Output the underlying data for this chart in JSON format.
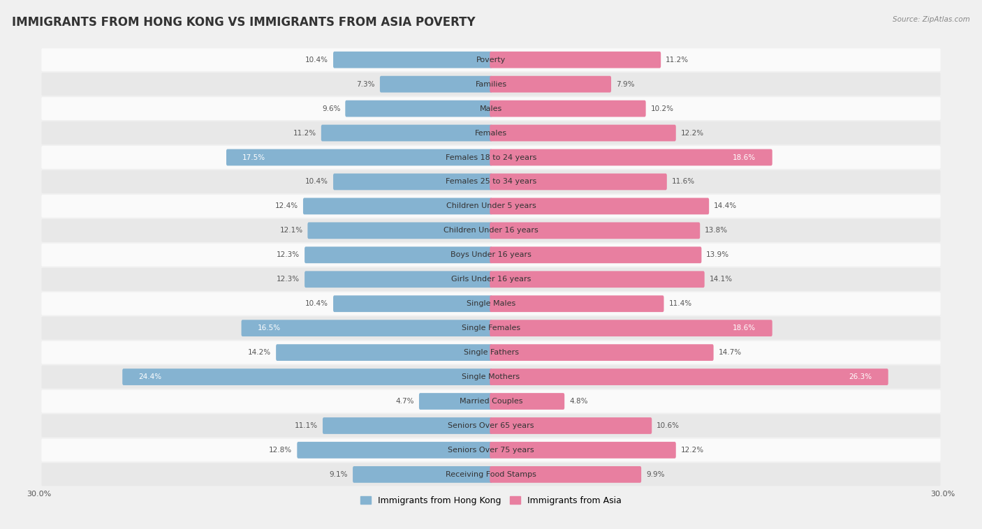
{
  "title": "IMMIGRANTS FROM HONG KONG VS IMMIGRANTS FROM ASIA POVERTY",
  "source": "Source: ZipAtlas.com",
  "categories": [
    "Poverty",
    "Families",
    "Males",
    "Females",
    "Females 18 to 24 years",
    "Females 25 to 34 years",
    "Children Under 5 years",
    "Children Under 16 years",
    "Boys Under 16 years",
    "Girls Under 16 years",
    "Single Males",
    "Single Females",
    "Single Fathers",
    "Single Mothers",
    "Married Couples",
    "Seniors Over 65 years",
    "Seniors Over 75 years",
    "Receiving Food Stamps"
  ],
  "hong_kong_values": [
    10.4,
    7.3,
    9.6,
    11.2,
    17.5,
    10.4,
    12.4,
    12.1,
    12.3,
    12.3,
    10.4,
    16.5,
    14.2,
    24.4,
    4.7,
    11.1,
    12.8,
    9.1
  ],
  "asia_values": [
    11.2,
    7.9,
    10.2,
    12.2,
    18.6,
    11.6,
    14.4,
    13.8,
    13.9,
    14.1,
    11.4,
    18.6,
    14.7,
    26.3,
    4.8,
    10.6,
    12.2,
    9.9
  ],
  "hk_color": "#85b3d1",
  "asia_color": "#e87fa0",
  "hk_label": "Immigrants from Hong Kong",
  "asia_label": "Immigrants from Asia",
  "xlim": 30.0,
  "bar_height": 0.52,
  "bg_color": "#f0f0f0",
  "row_light_color": "#fafafa",
  "row_dark_color": "#e8e8e8",
  "value_color_outside": "#555555",
  "value_color_inside": "#ffffff",
  "title_fontsize": 12,
  "cat_fontsize": 8.0,
  "value_fontsize": 7.5,
  "legend_fontsize": 9
}
